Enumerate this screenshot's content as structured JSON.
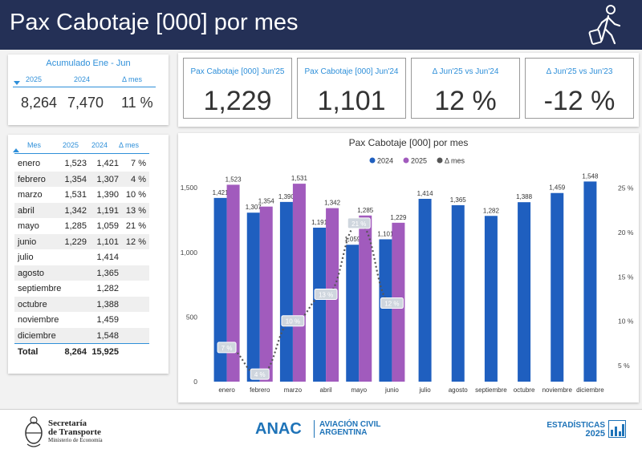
{
  "header": {
    "title": "Pax Cabotaje [000] por mes"
  },
  "acumulado": {
    "title": "Acumulado Ene - Jun",
    "headers": [
      "2025",
      "2024",
      "Δ mes"
    ],
    "values": [
      "8,264",
      "7,470",
      "11 %"
    ]
  },
  "kpis": [
    {
      "label": "Pax Cabotaje [000] Jun'25",
      "value": "1,229"
    },
    {
      "label": "Pax Cabotaje [000] Jun'24",
      "value": "1,101"
    },
    {
      "label": "Δ Jun'25 vs Jun'24",
      "value": "12 %"
    },
    {
      "label": "Δ Jun'25 vs Jun'23",
      "value": "-12 %"
    }
  ],
  "table": {
    "headers": [
      "Mes",
      "2025",
      "2024",
      "Δ mes"
    ],
    "rows": [
      [
        "enero",
        "1,523",
        "1,421",
        "7 %"
      ],
      [
        "febrero",
        "1,354",
        "1,307",
        "4 %"
      ],
      [
        "marzo",
        "1,531",
        "1,390",
        "10 %"
      ],
      [
        "abril",
        "1,342",
        "1,191",
        "13 %"
      ],
      [
        "mayo",
        "1,285",
        "1,059",
        "21 %"
      ],
      [
        "junio",
        "1,229",
        "1,101",
        "12 %"
      ],
      [
        "julio",
        "",
        "1,414",
        ""
      ],
      [
        "agosto",
        "",
        "1,365",
        ""
      ],
      [
        "septiembre",
        "",
        "1,282",
        ""
      ],
      [
        "octubre",
        "",
        "1,388",
        ""
      ],
      [
        "noviembre",
        "",
        "1,459",
        ""
      ],
      [
        "diciembre",
        "",
        "1,548",
        ""
      ]
    ],
    "total": [
      "Total",
      "8,264",
      "15,925"
    ]
  },
  "chart_data": {
    "type": "bar",
    "title": "Pax Cabotaje [000] por mes",
    "categories": [
      "enero",
      "febrero",
      "marzo",
      "abril",
      "mayo",
      "junio",
      "julio",
      "agosto",
      "septiembre",
      "octubre",
      "noviembre",
      "diciembre"
    ],
    "series": [
      {
        "name": "2024",
        "color": "#1f5fbf",
        "values": [
          1421,
          1307,
          1390,
          1191,
          1059,
          1101,
          1414,
          1365,
          1282,
          1388,
          1459,
          1548
        ]
      },
      {
        "name": "2025",
        "color": "#a15bbd",
        "values": [
          1523,
          1354,
          1531,
          1342,
          1285,
          1229,
          null,
          null,
          null,
          null,
          null,
          null
        ]
      },
      {
        "name": "Δ mes",
        "color": "#555555",
        "type": "line",
        "axis": "right",
        "values": [
          7,
          4,
          10,
          13,
          21,
          12,
          null,
          null,
          null,
          null,
          null,
          null
        ],
        "labels": [
          "7 %",
          "4 %",
          "10 %",
          "13 %",
          "21 %",
          "12 %"
        ]
      }
    ],
    "y_ticks": [
      "0",
      "500",
      "1,000",
      "1,500"
    ],
    "ylim": [
      0,
      1600
    ],
    "y2_ticks": [
      "5 %",
      "10 %",
      "15 %",
      "20 %",
      "25 %"
    ],
    "y2lim": [
      3.2,
      26.5
    ],
    "legend": "top-center"
  },
  "footer": {
    "secretaria_1": "Secretaría",
    "secretaria_2": "de Transporte",
    "ministerio": "Ministerio de Economía",
    "anac": "ANAC",
    "aviacion_1": "AVIACIÓN CIVIL",
    "aviacion_2": "ARGENTINA",
    "estadisticas": "ESTADÍSTICAS",
    "year": "2025"
  }
}
